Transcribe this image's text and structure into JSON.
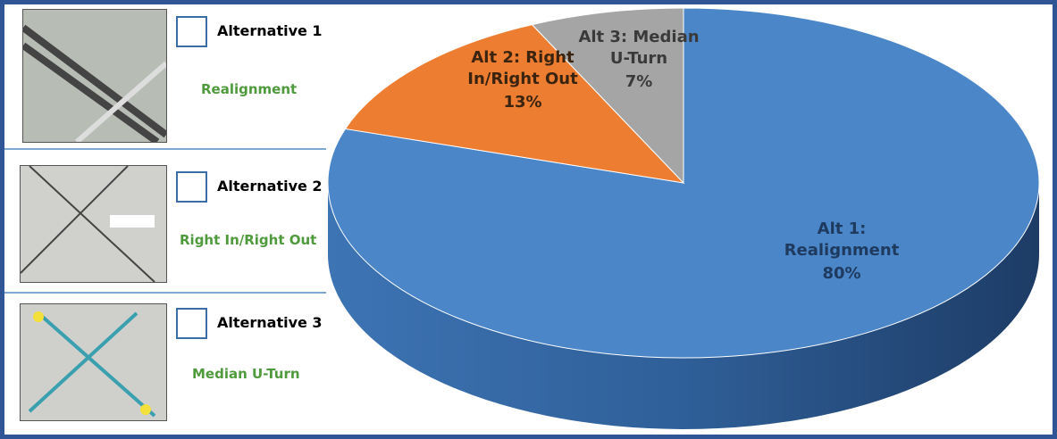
{
  "alternatives": [
    {
      "title": "Alternative 1",
      "subtitle": "Realignment"
    },
    {
      "title": "Alternative 2",
      "subtitle": "Right In/Right Out"
    },
    {
      "title": "Alternative 3",
      "subtitle": "Median U-Turn"
    }
  ],
  "chart_data": {
    "type": "pie",
    "categories": [
      "Alt 1: Realignment",
      "Alt 2: Right In/Right Out",
      "Alt 3: Median U-Turn"
    ],
    "values": [
      80,
      13,
      7
    ],
    "value_labels": [
      "80%",
      "13%",
      "7%"
    ],
    "colors": [
      "#4a86c8",
      "#ed7d31",
      "#a5a5a5"
    ]
  }
}
